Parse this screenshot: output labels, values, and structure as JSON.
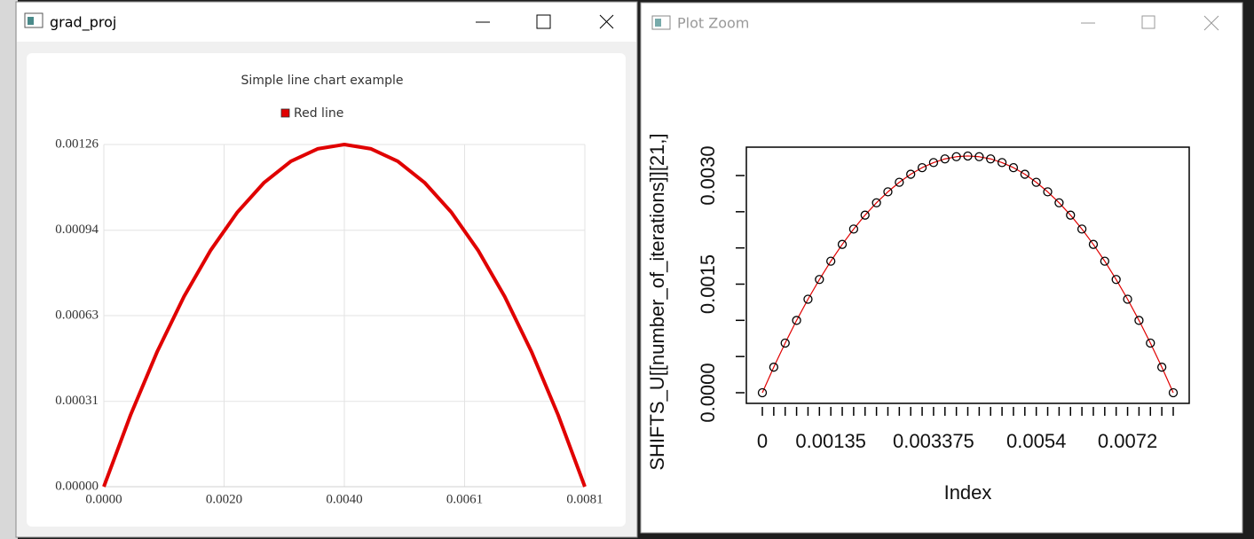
{
  "windows": [
    {
      "title": "grad_proj"
    },
    {
      "title": "Plot Zoom"
    }
  ],
  "chart_data": [
    {
      "type": "line",
      "title": "Simple line chart example",
      "x": [
        0,
        0.00045,
        0.0009,
        0.00135,
        0.0018,
        0.00225,
        0.0027,
        0.00315,
        0.0036,
        0.00405,
        0.0045,
        0.00495,
        0.0054,
        0.00585,
        0.0063,
        0.00675,
        0.0072,
        0.00765,
        0.0081
      ],
      "series": [
        {
          "name": "Red line",
          "color": "#e00000",
          "values": [
            0,
            0.000264,
            0.000498,
            0.0007,
            0.000871,
            0.001011,
            0.00112,
            0.001198,
            0.001244,
            0.00126,
            0.001244,
            0.001198,
            0.00112,
            0.001011,
            0.000871,
            0.0007,
            0.000498,
            0.000264,
            0
          ]
        }
      ],
      "xlim": [
        0,
        0.0081
      ],
      "xticks": [
        {
          "value": 0,
          "label": "0.0000"
        },
        {
          "value": 0.002025,
          "label": "0.0020"
        },
        {
          "value": 0.00405,
          "label": "0.0040"
        },
        {
          "value": 0.006075,
          "label": "0.0061"
        },
        {
          "value": 0.0081,
          "label": "0.0081"
        }
      ],
      "ylim": [
        0,
        0.00126
      ],
      "yticks": [
        {
          "value": 0,
          "label": "0.00000"
        },
        {
          "value": 0.000314,
          "label": "0.00031"
        },
        {
          "value": 0.00063,
          "label": "0.00063"
        },
        {
          "value": 0.000944,
          "label": "0.00094"
        },
        {
          "value": 0.00126,
          "label": "0.00126"
        }
      ],
      "grid": true,
      "legend": "top"
    },
    {
      "type": "line",
      "xlabel": "Index",
      "ylabel": "SHIFTS_U[[number_of_iterations]][21,]",
      "x": [
        0,
        0.000225,
        0.00045,
        0.000675,
        0.0009,
        0.001125,
        0.00135,
        0.001575,
        0.0018,
        0.002025,
        0.00225,
        0.002475,
        0.0027,
        0.002925,
        0.00315,
        0.003375,
        0.0036,
        0.003825,
        0.00405,
        0.004275,
        0.0045,
        0.004725,
        0.00495,
        0.005175,
        0.0054,
        0.005625,
        0.00585,
        0.006075,
        0.0063,
        0.006525,
        0.00675,
        0.006975,
        0.0072,
        0.007425,
        0.00765,
        0.007875,
        0.0081
      ],
      "series": [
        {
          "color": "#e00000",
          "marker_color": "#000000",
          "values": [
            0,
            0.000353,
            0.000686,
            0.000999,
            0.001292,
            0.001564,
            0.001817,
            0.002049,
            0.002261,
            0.002453,
            0.002624,
            0.002775,
            0.002907,
            0.003018,
            0.003109,
            0.003179,
            0.00323,
            0.00326,
            0.00327,
            0.00326,
            0.00323,
            0.003179,
            0.003109,
            0.003018,
            0.002907,
            0.002775,
            0.002624,
            0.002453,
            0.002261,
            0.002049,
            0.001817,
            0.001564,
            0.001292,
            0.000999,
            0.000686,
            0.000353,
            0
          ]
        }
      ],
      "markers": "open-circle",
      "xlim": [
        -0.000315,
        0.008415
      ],
      "xticks": [
        0,
        0.00135,
        0.003375,
        0.0054,
        0.0072
      ],
      "xtick_at_points": true,
      "ylim": [
        -0.000147,
        0.003392
      ],
      "yticks": [
        {
          "value": 0,
          "label": "0.0000"
        },
        {
          "value": 0.0015,
          "label": "0.0015"
        },
        {
          "value": 0.003,
          "label": "0.0030"
        }
      ],
      "yminor_ticks": [
        0.0005,
        0.001,
        0.002,
        0.0025
      ],
      "grid": false,
      "frame": true
    }
  ]
}
